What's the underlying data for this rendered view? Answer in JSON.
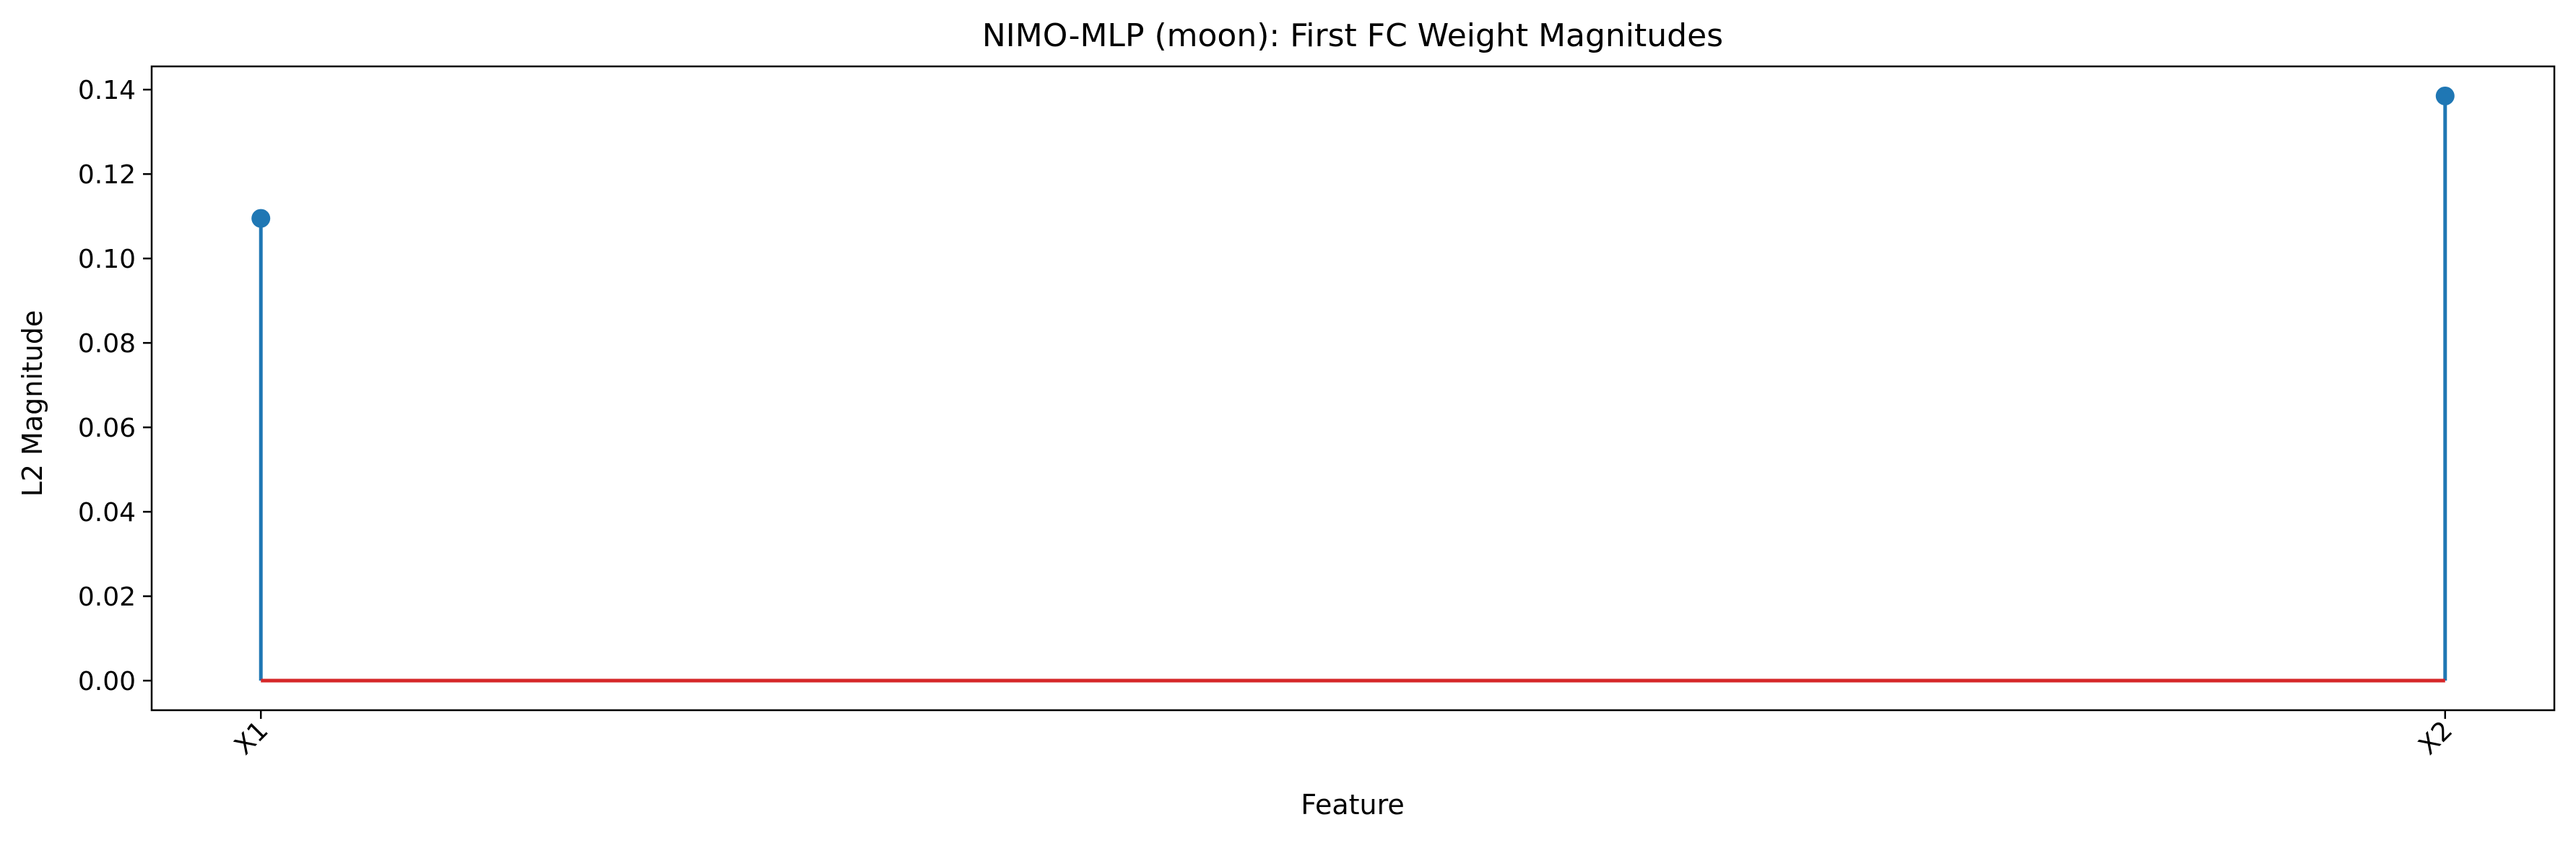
{
  "chart_data": {
    "type": "stem",
    "title": "NIMO-MLP (moon): First FC Weight Magnitudes",
    "xlabel": "Feature",
    "ylabel": "L2 Magnitude",
    "categories": [
      "X1",
      "X2"
    ],
    "values": [
      0.1095,
      0.1385
    ],
    "baseline": 0,
    "ylim": [
      -0.007,
      0.1455
    ],
    "yticks": [
      0.0,
      0.02,
      0.04,
      0.06,
      0.08,
      0.1,
      0.12,
      0.14
    ],
    "ytick_labels": [
      "0.00",
      "0.02",
      "0.04",
      "0.06",
      "0.08",
      "0.10",
      "0.12",
      "0.14"
    ],
    "xtick_rotation_deg": 45,
    "grid": false,
    "colors": {
      "stem": "#1f77b4",
      "marker": "#1f77b4",
      "baseline": "#d62728",
      "axes": "#000000"
    }
  }
}
